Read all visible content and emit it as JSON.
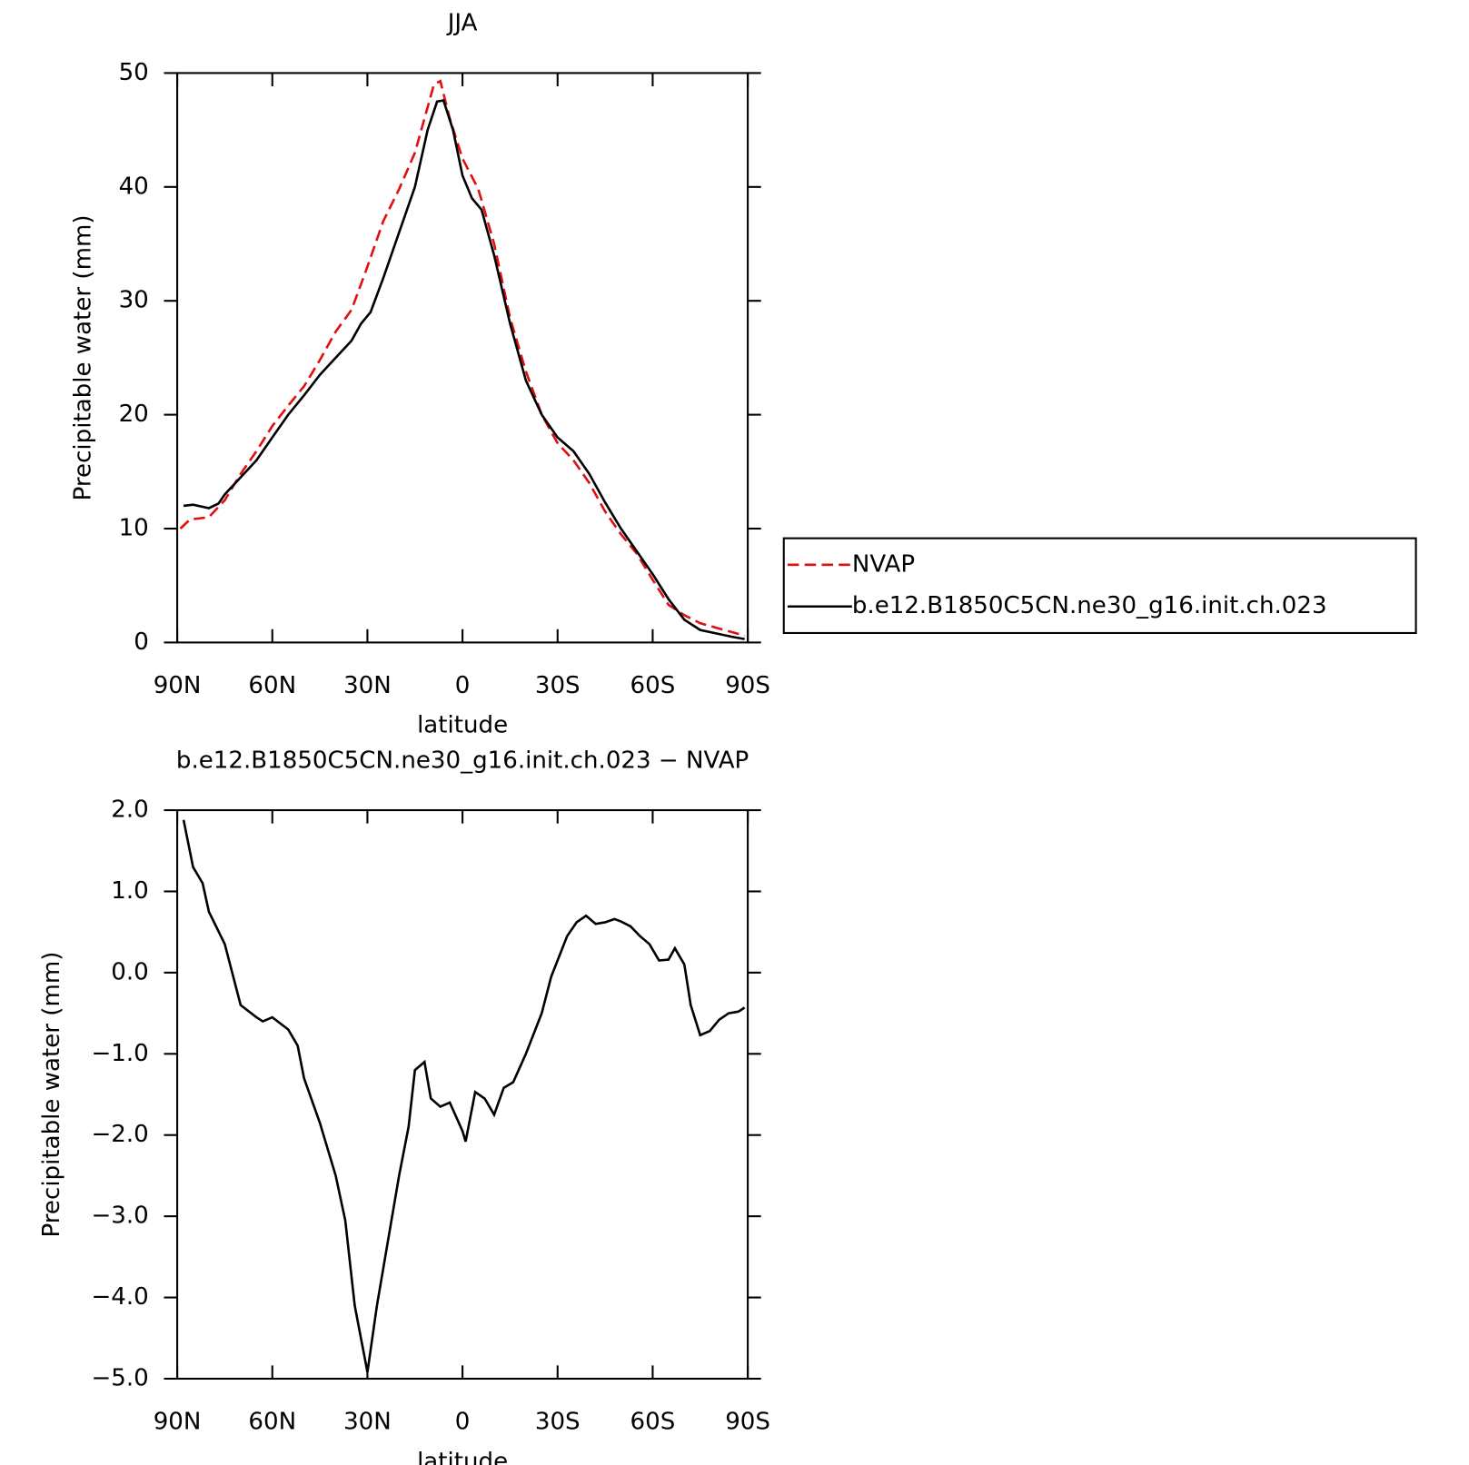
{
  "chart_data": [
    {
      "type": "line",
      "title": "JJA",
      "xlabel": "latitude",
      "ylabel": "Precipitable water (mm)",
      "xlim": [
        90,
        -90
      ],
      "ylim": [
        0,
        50
      ],
      "xticks": [
        {
          "value": 90,
          "label": "90N"
        },
        {
          "value": 60,
          "label": "60N"
        },
        {
          "value": 30,
          "label": "30N"
        },
        0,
        {
          "value": -30,
          "label": "30S"
        },
        {
          "value": -60,
          "label": "60S"
        },
        {
          "value": -90,
          "label": "90S"
        }
      ],
      "yticks": [
        0,
        10,
        20,
        30,
        40,
        50
      ],
      "legend": "right",
      "series": [
        {
          "name": "NVAP",
          "color": "#e01010",
          "dashed": true,
          "x": [
            89,
            86,
            80,
            75,
            70,
            65,
            60,
            55,
            50,
            45,
            40,
            35,
            30,
            25,
            20,
            15,
            11,
            9,
            7,
            4,
            0,
            -5,
            -10,
            -15,
            -20,
            -25,
            -30,
            -35,
            -40,
            -45,
            -50,
            -55,
            -60,
            -65,
            -70,
            -75,
            -80,
            -89
          ],
          "values": [
            10.0,
            10.8,
            11.0,
            12.5,
            14.8,
            16.8,
            19.0,
            20.8,
            22.5,
            24.8,
            27.3,
            29.2,
            33,
            37,
            39.8,
            43,
            47,
            49,
            49.3,
            46,
            42.5,
            39.8,
            35,
            28.5,
            23.8,
            20,
            17.5,
            16,
            14,
            11.5,
            9.5,
            7.8,
            5.5,
            3.3,
            2.4,
            1.7,
            1.3,
            0.6
          ]
        },
        {
          "name": "b.e12.B1850C5CN.ne30_g16.init.ch.023",
          "color": "#000000",
          "dashed": false,
          "x": [
            88,
            85,
            80,
            77,
            75,
            70,
            65,
            60,
            55,
            50,
            45,
            40,
            35,
            32,
            29,
            25,
            20,
            15,
            11,
            8,
            6,
            3,
            0,
            -3,
            -6,
            -10,
            -15,
            -20,
            -25,
            -30,
            -35,
            -40,
            -45,
            -50,
            -55,
            -60,
            -65,
            -70,
            -75,
            -80,
            -85,
            -89
          ],
          "values": [
            12.0,
            12.1,
            11.8,
            12.2,
            13.0,
            14.5,
            16.0,
            18.0,
            20.0,
            21.7,
            23.5,
            25.0,
            26.5,
            28,
            29,
            32,
            36,
            40,
            45,
            47.5,
            47.6,
            45,
            41,
            39,
            38,
            34,
            28,
            23,
            20,
            18,
            16.8,
            14.8,
            12.3,
            10,
            8,
            6.0,
            3.8,
            2.0,
            1.1,
            0.8,
            0.5,
            0.3
          ]
        }
      ]
    },
    {
      "type": "line",
      "title": "b.e12.B1850C5CN.ne30_g16.init.ch.023 − NVAP",
      "xlabel": "latitude",
      "ylabel": "Precipitable water (mm)",
      "xlim": [
        90,
        -90
      ],
      "ylim": [
        -5.0,
        2.0
      ],
      "xticks": [
        {
          "value": 90,
          "label": "90N"
        },
        {
          "value": 60,
          "label": "60N"
        },
        {
          "value": 30,
          "label": "30N"
        },
        0,
        {
          "value": -30,
          "label": "30S"
        },
        {
          "value": -60,
          "label": "60S"
        },
        {
          "value": -90,
          "label": "90S"
        }
      ],
      "yticks": [
        {
          "value": -5,
          "label": "−5.0"
        },
        {
          "value": -4,
          "label": "−4.0"
        },
        {
          "value": -3,
          "label": "−3.0"
        },
        {
          "value": -2,
          "label": "−2.0"
        },
        {
          "value": -1,
          "label": "−1.0"
        },
        {
          "value": 0,
          "label": "0.0"
        },
        {
          "value": 1,
          "label": "1.0"
        },
        {
          "value": 2,
          "label": "2.0"
        }
      ],
      "color": "#000000",
      "x": [
        88,
        85,
        82,
        80,
        75,
        70,
        65,
        63,
        60,
        55,
        52,
        50,
        45,
        40,
        37,
        34,
        30,
        27,
        20,
        17,
        15,
        12,
        10,
        7,
        4,
        0,
        -1,
        -4,
        -7,
        -10,
        -13,
        -16,
        -20,
        -25,
        -28,
        -33,
        -36,
        -39,
        -42,
        -45,
        -48,
        -50,
        -53,
        -56,
        -59,
        -62,
        -65,
        -67,
        -70,
        -72,
        -75,
        -78,
        -81,
        -84,
        -87,
        -89
      ],
      "values": [
        1.88,
        1.3,
        1.1,
        0.75,
        0.35,
        -0.4,
        -0.55,
        -0.6,
        -0.55,
        -0.7,
        -0.9,
        -1.3,
        -1.85,
        -2.5,
        -3.05,
        -4.1,
        -4.92,
        -4.1,
        -2.5,
        -1.9,
        -1.2,
        -1.1,
        -1.55,
        -1.65,
        -1.6,
        -1.95,
        -2.08,
        -1.47,
        -1.55,
        -1.75,
        -1.42,
        -1.35,
        -1.0,
        -0.5,
        -0.05,
        0.45,
        0.62,
        0.7,
        0.6,
        0.62,
        0.66,
        0.63,
        0.57,
        0.45,
        0.35,
        0.15,
        0.16,
        0.3,
        0.1,
        -0.4,
        -0.77,
        -0.72,
        -0.58,
        -0.5,
        -0.48,
        -0.43
      ]
    }
  ]
}
